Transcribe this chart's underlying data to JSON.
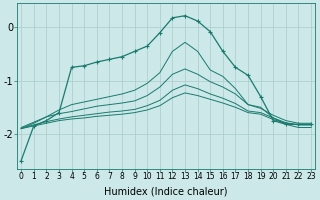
{
  "xlabel": "Humidex (Indice chaleur)",
  "ylabel": "",
  "bg_color": "#cce8e8",
  "grid_color": "#aacccc",
  "line_color": "#1a7a6e",
  "x_values": [
    0,
    1,
    2,
    3,
    4,
    5,
    6,
    7,
    8,
    9,
    10,
    11,
    12,
    13,
    14,
    15,
    16,
    17,
    18,
    19,
    20,
    21,
    22,
    23
  ],
  "lines": [
    [
      -2.5,
      -1.85,
      -1.75,
      -1.6,
      -0.75,
      -0.72,
      -0.65,
      -0.6,
      -0.55,
      -0.45,
      -0.35,
      -0.1,
      0.18,
      0.22,
      0.12,
      -0.08,
      -0.45,
      -0.75,
      -0.9,
      -1.3,
      -1.75,
      -1.82,
      -1.82,
      -1.82
    ],
    [
      -1.9,
      -1.8,
      -1.68,
      -1.55,
      -1.45,
      -1.4,
      -1.35,
      -1.3,
      -1.25,
      -1.18,
      -1.05,
      -0.85,
      -0.45,
      -0.28,
      -0.45,
      -0.8,
      -0.92,
      -1.15,
      -1.45,
      -1.5,
      -1.7,
      -1.82,
      -1.88,
      -1.88
    ],
    [
      -1.88,
      -1.78,
      -1.68,
      -1.62,
      -1.58,
      -1.53,
      -1.48,
      -1.45,
      -1.42,
      -1.38,
      -1.28,
      -1.12,
      -0.88,
      -0.78,
      -0.88,
      -1.02,
      -1.12,
      -1.25,
      -1.45,
      -1.52,
      -1.65,
      -1.75,
      -1.8,
      -1.8
    ],
    [
      -1.9,
      -1.83,
      -1.77,
      -1.72,
      -1.68,
      -1.65,
      -1.62,
      -1.59,
      -1.57,
      -1.54,
      -1.47,
      -1.37,
      -1.18,
      -1.08,
      -1.15,
      -1.25,
      -1.33,
      -1.43,
      -1.57,
      -1.6,
      -1.7,
      -1.79,
      -1.83,
      -1.83
    ],
    [
      -1.9,
      -1.85,
      -1.8,
      -1.75,
      -1.72,
      -1.7,
      -1.67,
      -1.65,
      -1.63,
      -1.6,
      -1.55,
      -1.47,
      -1.32,
      -1.23,
      -1.28,
      -1.35,
      -1.42,
      -1.5,
      -1.6,
      -1.63,
      -1.73,
      -1.8,
      -1.83,
      -1.83
    ]
  ],
  "marker_line_idx": 0,
  "ylim": [
    -2.65,
    0.45
  ],
  "yticks": [
    0,
    -1,
    -2
  ],
  "xlim": [
    -0.3,
    23.3
  ],
  "xlabel_fontsize": 7,
  "ylabel_fontsize": 7,
  "xtick_fontsize": 5.5,
  "ytick_fontsize": 7
}
